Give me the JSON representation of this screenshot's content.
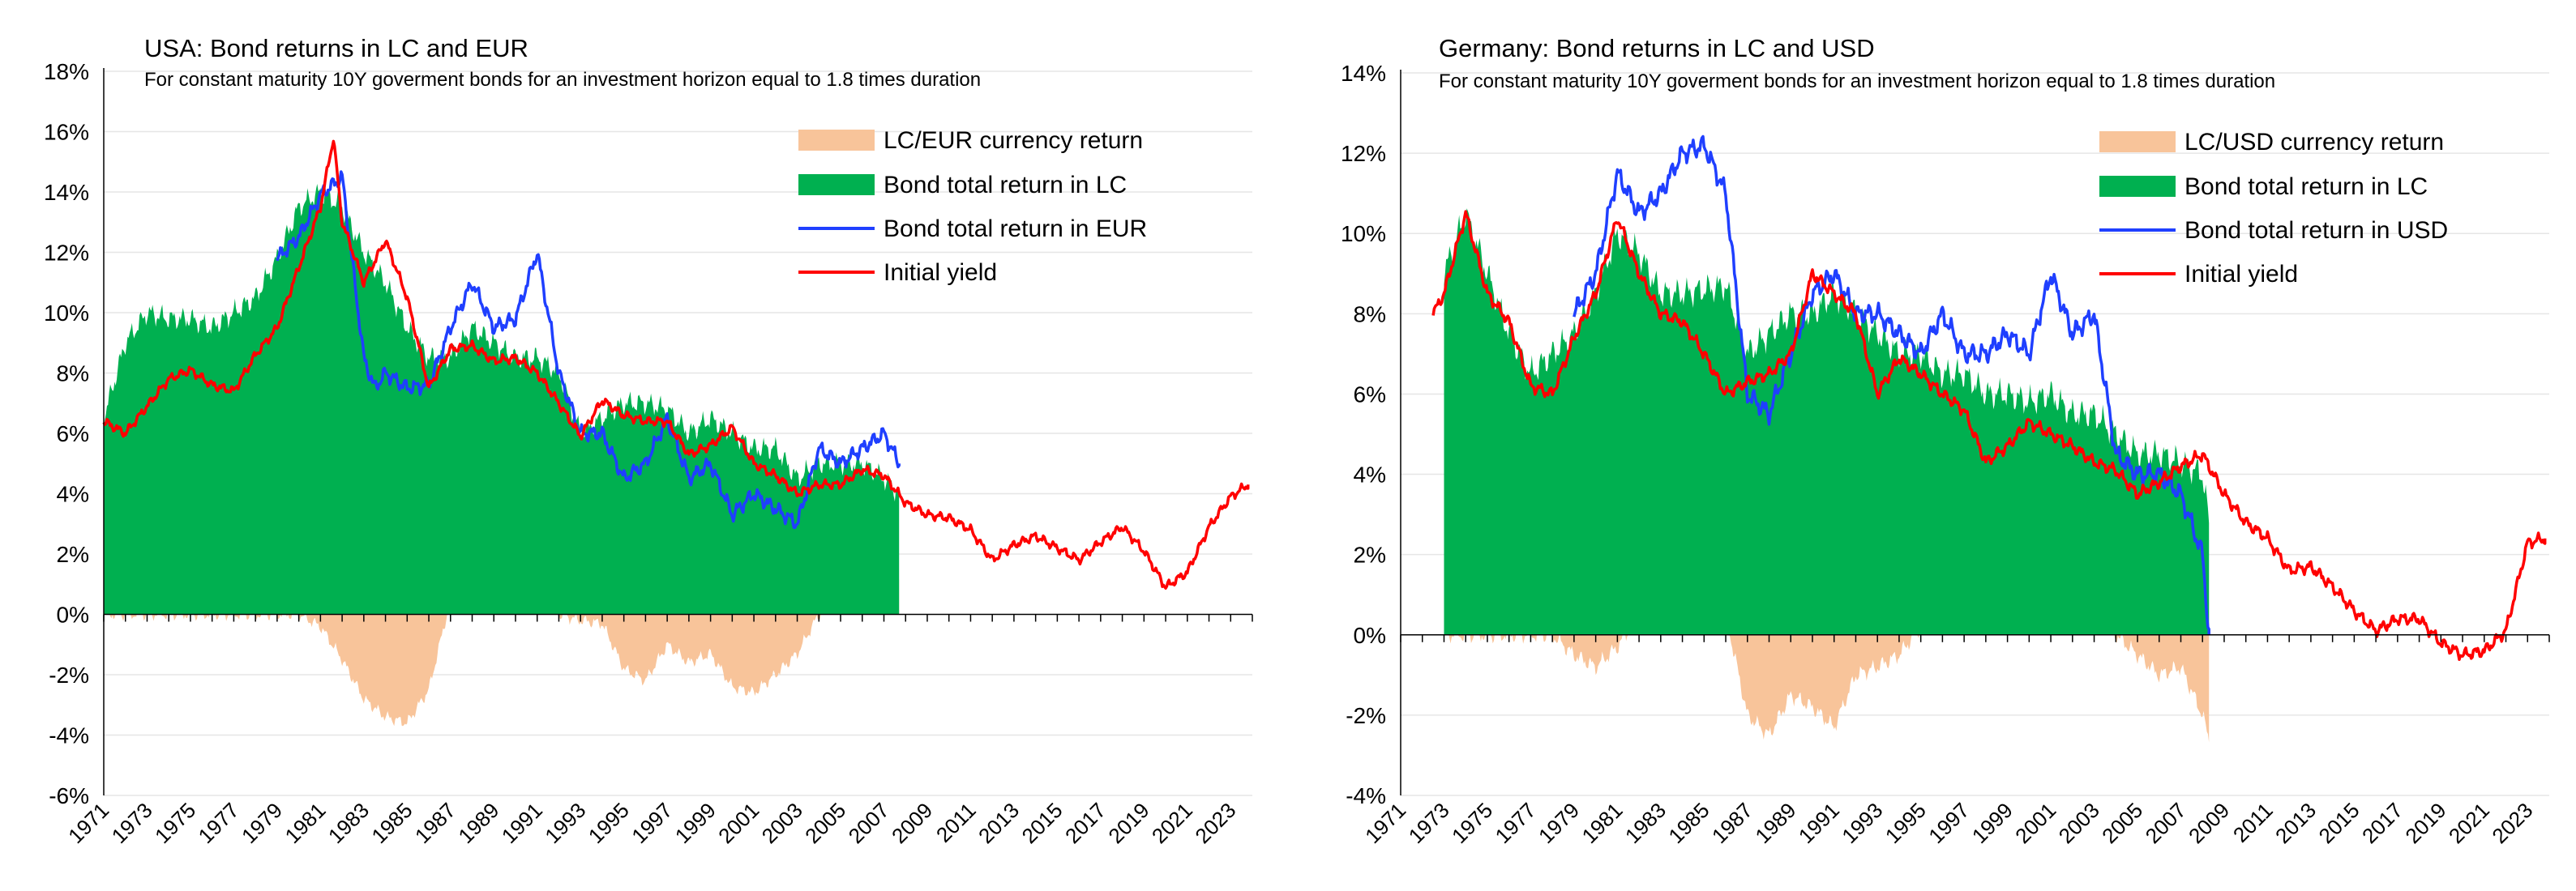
{
  "chart_data": [
    {
      "type": "area",
      "title": "USA: Bond returns in LC and EUR",
      "subtitle": "For constant maturity 10Y goverment bonds for an investment horizon equal to 1.8 times duration",
      "ylim": [
        -6,
        18
      ],
      "yticks": [
        -6,
        -4,
        -2,
        0,
        2,
        4,
        6,
        8,
        10,
        12,
        14,
        16,
        18
      ],
      "ytick_labels": [
        "-6%",
        "-4%",
        "-2%",
        "0%",
        "2%",
        "4%",
        "6%",
        "8%",
        "10%",
        "12%",
        "14%",
        "16%",
        "18%"
      ],
      "xlim": [
        1971,
        2024
      ],
      "xtick_labels": [
        "1971",
        "1973",
        "1975",
        "1977",
        "1979",
        "1981",
        "1983",
        "1985",
        "1987",
        "1989",
        "1991",
        "1993",
        "1995",
        "1997",
        "1999",
        "2001",
        "2003",
        "2005",
        "2007",
        "2009",
        "2011",
        "2013",
        "2015",
        "2017",
        "2019",
        "2021",
        "2023"
      ],
      "legend": {
        "position": "top-right",
        "entries": [
          "LC/EUR currency return",
          "Bond total return in LC",
          "Bond total return in EUR",
          "Initial yield"
        ]
      },
      "colors": {
        "currency": "#f8c49a",
        "lc": "#00b050",
        "fx": "#1f3fff",
        "yield": "#ff0000"
      },
      "series": [
        {
          "name": "Initial yield",
          "x": [
            1971,
            1972,
            1973,
            1974,
            1975,
            1976,
            1977,
            1978,
            1979,
            1980,
            1981,
            1981.6,
            1982,
            1983,
            1984,
            1985,
            1986,
            1987,
            1988,
            1989,
            1990,
            1991,
            1992,
            1993,
            1994,
            1995,
            1996,
            1997,
            1998,
            1999,
            2000,
            2001,
            2002,
            2003,
            2004,
            2005,
            2006,
            2007,
            2008,
            2009,
            2010,
            2011,
            2012,
            2013,
            2014,
            2015,
            2016,
            2017,
            2018,
            2019,
            2020,
            2021,
            2022,
            2023,
            2023.8
          ],
          "values": [
            6.4,
            6.0,
            6.9,
            7.8,
            8.1,
            7.6,
            7.4,
            8.6,
            9.5,
            11.5,
            13.5,
            15.8,
            13.0,
            11.0,
            12.4,
            10.5,
            7.5,
            8.8,
            8.9,
            8.4,
            8.5,
            8.0,
            7.0,
            5.9,
            7.1,
            6.6,
            6.4,
            6.4,
            5.3,
            5.6,
            6.2,
            5.0,
            4.6,
            4.0,
            4.3,
            4.3,
            4.8,
            4.6,
            3.7,
            3.3,
            3.2,
            2.8,
            1.8,
            2.3,
            2.6,
            2.2,
            1.8,
            2.4,
            2.9,
            2.1,
            0.9,
            1.4,
            2.9,
            3.9,
            4.3
          ]
        },
        {
          "name": "Bond total return in LC",
          "x": [
            1971,
            1972,
            1973,
            1974,
            1975,
            1976,
            1977,
            1978,
            1979,
            1980,
            1981,
            1982,
            1983,
            1984,
            1985,
            1986,
            1987,
            1988,
            1989,
            1990,
            1991,
            1992,
            1993,
            1994,
            1995,
            1996,
            1997,
            1998,
            1999,
            2000,
            2001,
            2002,
            2003,
            2004,
            2005,
            2006,
            2007,
            2007.7
          ],
          "values": [
            6.5,
            9.0,
            10.0,
            9.8,
            9.8,
            9.5,
            10.0,
            10.5,
            11.8,
            13.5,
            14.0,
            13.5,
            12.0,
            11.0,
            9.5,
            8.5,
            8.5,
            9.5,
            9.0,
            8.5,
            8.5,
            8.0,
            6.0,
            6.5,
            7.0,
            7.0,
            6.8,
            6.0,
            6.5,
            6.0,
            5.5,
            5.5,
            4.5,
            5.0,
            5.0,
            5.0,
            4.5,
            4.0
          ]
        },
        {
          "name": "Bond total return in EUR",
          "x": [
            1979,
            1980,
            1981,
            1982,
            1983,
            1983.5,
            1984,
            1985,
            1986,
            1987,
            1988,
            1989,
            1990,
            1991,
            1992,
            1993,
            1994,
            1995,
            1996,
            1997,
            1998,
            1999,
            2000,
            2001,
            2002,
            2003,
            2004,
            2005,
            2006,
            2007,
            2007.7
          ],
          "values": [
            11.8,
            12.5,
            13.9,
            14.5,
            8.5,
            7.5,
            8.0,
            7.5,
            7.6,
            9.5,
            11.0,
            9.5,
            9.8,
            12.0,
            8.0,
            6.0,
            6.0,
            4.5,
            5.0,
            6.5,
            4.5,
            5.0,
            3.3,
            4.0,
            3.5,
            3.0,
            5.5,
            5.0,
            5.5,
            6.0,
            5.0
          ]
        },
        {
          "name": "LC/EUR currency return",
          "x": [
            1971,
            1980,
            1981,
            1982,
            1983,
            1984,
            1985,
            1986,
            1987,
            1988,
            1989,
            1990,
            1991,
            1992,
            1993,
            1994,
            1995,
            1996,
            1997,
            1998,
            1999,
            2000,
            2001,
            2002,
            2003,
            2004,
            2005,
            2006,
            2007,
            2007.7
          ],
          "values": [
            0.0,
            0.0,
            -0.4,
            -1.5,
            -2.8,
            -3.4,
            -3.6,
            -2.5,
            0.5,
            1.2,
            0.8,
            1.2,
            3.0,
            0.0,
            -0.2,
            -0.3,
            -1.8,
            -2.2,
            -1.0,
            -1.6,
            -1.3,
            -2.4,
            -2.6,
            -2.0,
            -1.3,
            0.0,
            0.4,
            0.8,
            1.2,
            1.0
          ]
        }
      ]
    },
    {
      "type": "area",
      "title": "Germany: Bond returns in LC and USD",
      "subtitle": "For constant maturity 10Y goverment bonds for an investment horizon equal to 1.8 times duration",
      "ylim": [
        -4,
        14
      ],
      "yticks": [
        -4,
        -2,
        0,
        2,
        4,
        6,
        8,
        10,
        12,
        14
      ],
      "ytick_labels": [
        "-4%",
        "-2%",
        "0%",
        "2%",
        "4%",
        "6%",
        "8%",
        "10%",
        "12%",
        "14%"
      ],
      "xlim": [
        1971,
        2024
      ],
      "xtick_labels": [
        "1971",
        "1973",
        "1975",
        "1977",
        "1979",
        "1981",
        "1983",
        "1985",
        "1987",
        "1989",
        "1991",
        "1993",
        "1995",
        "1997",
        "1999",
        "2001",
        "2003",
        "2005",
        "2007",
        "2009",
        "2011",
        "2013",
        "2015",
        "2017",
        "2019",
        "2021",
        "2023"
      ],
      "legend": {
        "position": "top-right",
        "entries": [
          "LC/USD currency return",
          "Bond total return in LC",
          "Bond total return in USD",
          "Initial yield"
        ]
      },
      "colors": {
        "currency": "#f8c49a",
        "lc": "#00b050",
        "fx": "#1f3fff",
        "yield": "#ff0000"
      },
      "series": [
        {
          "name": "Initial yield",
          "x": [
            1972.5,
            1973,
            1974,
            1975,
            1976,
            1977,
            1978,
            1979,
            1980,
            1981,
            1982,
            1983,
            1984,
            1985,
            1986,
            1987,
            1988,
            1989,
            1990,
            1991,
            1992,
            1993,
            1994,
            1995,
            1996,
            1997,
            1998,
            1999,
            2000,
            2001,
            2002,
            2003,
            2004,
            2005,
            2006,
            2007,
            2008,
            2009,
            2010,
            2011,
            2012,
            2013,
            2014,
            2015,
            2016,
            2017,
            2018,
            2019,
            2020,
            2021,
            2022,
            2023,
            2023.8
          ],
          "values": [
            8.0,
            8.5,
            10.5,
            8.5,
            7.8,
            6.2,
            6.0,
            7.4,
            8.5,
            10.4,
            9.0,
            8.0,
            7.8,
            7.0,
            6.0,
            6.3,
            6.5,
            7.0,
            9.0,
            8.5,
            8.0,
            6.0,
            6.9,
            6.5,
            6.0,
            5.6,
            4.3,
            4.7,
            5.3,
            5.0,
            4.7,
            4.3,
            4.1,
            3.5,
            3.8,
            4.2,
            4.5,
            3.5,
            2.8,
            2.4,
            1.6,
            1.7,
            1.2,
            0.6,
            0.1,
            0.4,
            0.4,
            -0.2,
            -0.5,
            -0.4,
            0.1,
            2.3,
            2.4
          ]
        },
        {
          "name": "Bond total return in LC",
          "x": [
            1973,
            1974,
            1975,
            1976,
            1977,
            1978,
            1979,
            1980,
            1981,
            1982,
            1983,
            1984,
            1985,
            1986,
            1987,
            1988,
            1989,
            1990,
            1991,
            1992,
            1993,
            1994,
            1995,
            1996,
            1997,
            1998,
            1999,
            2000,
            2001,
            2002,
            2003,
            2004,
            2005,
            2006,
            2007,
            2008,
            2008.3
          ],
          "values": [
            9.0,
            10.5,
            9.0,
            7.5,
            6.5,
            7.0,
            7.5,
            8.5,
            10.0,
            9.5,
            8.5,
            8.5,
            8.6,
            8.7,
            7.0,
            7.5,
            8.0,
            8.0,
            8.5,
            8.0,
            7.5,
            7.0,
            7.0,
            6.5,
            6.5,
            6.0,
            6.0,
            5.8,
            6.0,
            5.5,
            5.5,
            5.0,
            4.5,
            4.5,
            4.3,
            4.0,
            2.8
          ]
        },
        {
          "name": "Bond total return in USD",
          "x": [
            1979,
            1980,
            1981,
            1982,
            1983,
            1984,
            1985,
            1986,
            1987,
            1988,
            1989,
            1990,
            1991,
            1992,
            1993,
            1994,
            1995,
            1996,
            1997,
            1998,
            1999,
            2000,
            2001,
            2002,
            2003,
            2004,
            2005,
            2006,
            2007,
            2008,
            2008.3
          ],
          "values": [
            8.0,
            9.0,
            11.5,
            10.5,
            11.0,
            12.0,
            12.2,
            11.0,
            6.0,
            5.5,
            7.0,
            8.5,
            9.0,
            8.0,
            8.0,
            7.5,
            7.0,
            8.0,
            7.0,
            7.0,
            7.5,
            7.0,
            9.0,
            7.5,
            8.0,
            4.5,
            4.0,
            4.0,
            3.5,
            2.0,
            0.0
          ]
        },
        {
          "name": "LC/USD currency return",
          "x": [
            1973,
            1978,
            1979,
            1980,
            1981,
            1982,
            1983,
            1984,
            1985,
            1986,
            1987,
            1988,
            1989,
            1990,
            1991,
            1992,
            1993,
            1994,
            1995,
            1996,
            1997,
            1998,
            1999,
            2000,
            2001,
            2002,
            2003,
            2004,
            2005,
            2006,
            2007,
            2008,
            2008.3
          ],
          "values": [
            0.0,
            0.0,
            -0.5,
            -0.8,
            -0.3,
            0.5,
            1.5,
            3.0,
            3.5,
            0.5,
            -2.0,
            -2.5,
            -1.5,
            -1.8,
            -2.3,
            -1.0,
            -0.8,
            -0.5,
            0.2,
            0.5,
            1.0,
            1.2,
            1.5,
            1.7,
            3.0,
            2.0,
            0.8,
            0.0,
            -0.5,
            -1.0,
            -0.8,
            -2.0,
            -2.6
          ]
        }
      ]
    }
  ]
}
